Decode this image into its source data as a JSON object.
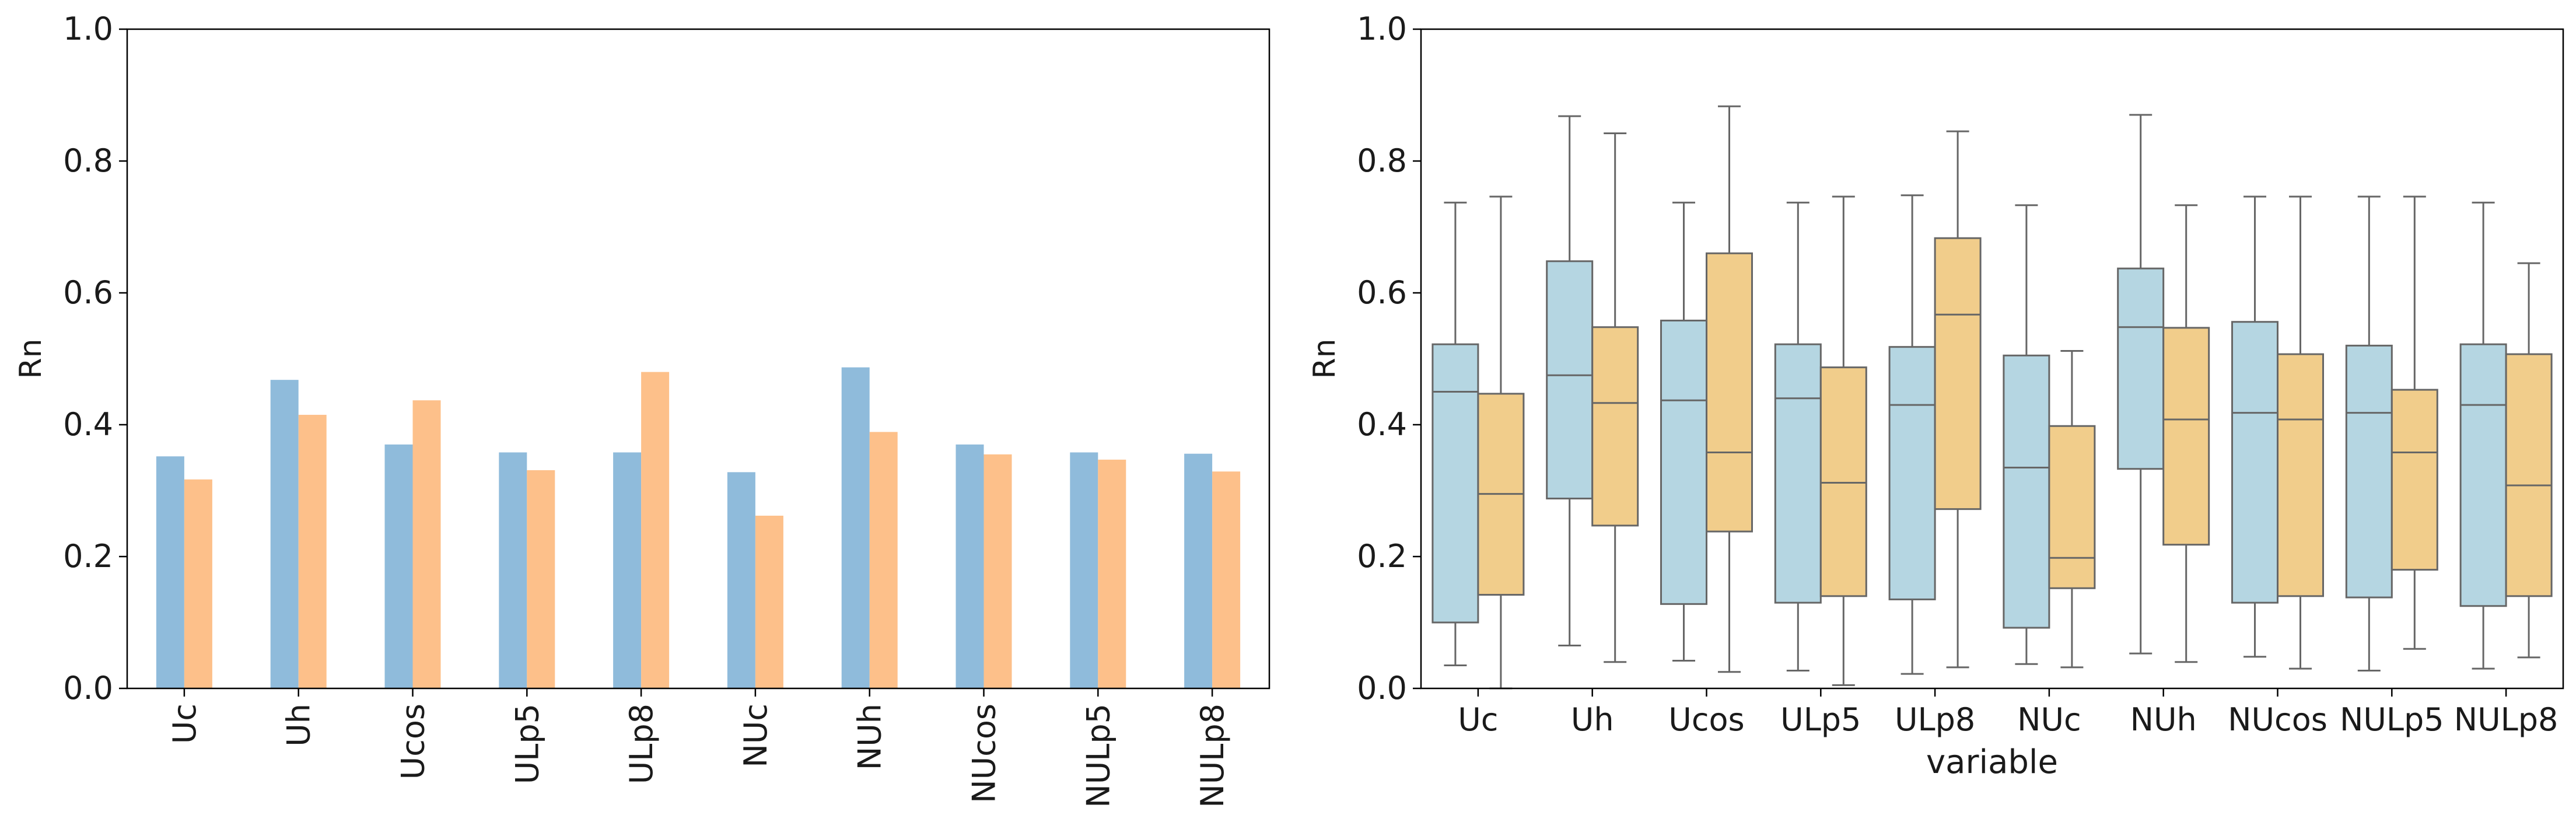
{
  "chart_data": [
    {
      "type": "bar",
      "categories": [
        "Uc",
        "Uh",
        "Ucos",
        "ULp5",
        "ULp8",
        "NUc",
        "NUh",
        "NUcos",
        "NULp5",
        "NULp8"
      ],
      "series": [
        {
          "color": "#8fbbdb",
          "values": [
            0.352,
            0.468,
            0.37,
            0.358,
            0.358,
            0.328,
            0.487,
            0.37,
            0.358,
            0.356
          ]
        },
        {
          "color": "#fdc08a",
          "values": [
            0.317,
            0.415,
            0.437,
            0.331,
            0.48,
            0.262,
            0.389,
            0.355,
            0.347,
            0.329
          ]
        }
      ],
      "ylabel": "Rn",
      "ylim": [
        0,
        1.0
      ],
      "yticks": [
        "0.0",
        "0.2",
        "0.4",
        "0.6",
        "0.8",
        "1.0"
      ],
      "xtick_rotation": "vertical",
      "grid": false,
      "legend": "none"
    },
    {
      "type": "box",
      "categories": [
        "Uc",
        "Uh",
        "Ucos",
        "ULp5",
        "ULp8",
        "NUc",
        "NUh",
        "NUcos",
        "NULp5",
        "NULp8"
      ],
      "series": [
        {
          "color": "#b5d6e2",
          "boxes": [
            {
              "whislo": 0.035,
              "q1": 0.1,
              "med": 0.45,
              "q3": 0.522,
              "whishi": 0.737
            },
            {
              "whislo": 0.065,
              "q1": 0.288,
              "med": 0.475,
              "q3": 0.648,
              "whishi": 0.868
            },
            {
              "whislo": 0.042,
              "q1": 0.128,
              "med": 0.437,
              "q3": 0.558,
              "whishi": 0.737
            },
            {
              "whislo": 0.027,
              "q1": 0.13,
              "med": 0.44,
              "q3": 0.522,
              "whishi": 0.737
            },
            {
              "whislo": 0.022,
              "q1": 0.135,
              "med": 0.43,
              "q3": 0.518,
              "whishi": 0.748
            },
            {
              "whislo": 0.037,
              "q1": 0.092,
              "med": 0.335,
              "q3": 0.505,
              "whishi": 0.733
            },
            {
              "whislo": 0.053,
              "q1": 0.333,
              "med": 0.548,
              "q3": 0.637,
              "whishi": 0.87
            },
            {
              "whislo": 0.048,
              "q1": 0.13,
              "med": 0.418,
              "q3": 0.556,
              "whishi": 0.746
            },
            {
              "whislo": 0.027,
              "q1": 0.138,
              "med": 0.418,
              "q3": 0.52,
              "whishi": 0.746
            },
            {
              "whislo": 0.03,
              "q1": 0.125,
              "med": 0.43,
              "q3": 0.522,
              "whishi": 0.737
            }
          ]
        },
        {
          "color": "#f1cd8b",
          "boxes": [
            {
              "whislo": 0.0,
              "q1": 0.142,
              "med": 0.295,
              "q3": 0.447,
              "whishi": 0.746
            },
            {
              "whislo": 0.04,
              "q1": 0.247,
              "med": 0.433,
              "q3": 0.548,
              "whishi": 0.842
            },
            {
              "whislo": 0.025,
              "q1": 0.238,
              "med": 0.358,
              "q3": 0.66,
              "whishi": 0.883
            },
            {
              "whislo": 0.005,
              "q1": 0.14,
              "med": 0.312,
              "q3": 0.487,
              "whishi": 0.746
            },
            {
              "whislo": 0.032,
              "q1": 0.272,
              "med": 0.567,
              "q3": 0.683,
              "whishi": 0.845
            },
            {
              "whislo": 0.032,
              "q1": 0.152,
              "med": 0.198,
              "q3": 0.398,
              "whishi": 0.512
            },
            {
              "whislo": 0.04,
              "q1": 0.218,
              "med": 0.408,
              "q3": 0.547,
              "whishi": 0.733
            },
            {
              "whislo": 0.03,
              "q1": 0.14,
              "med": 0.408,
              "q3": 0.507,
              "whishi": 0.746
            },
            {
              "whislo": 0.06,
              "q1": 0.18,
              "med": 0.358,
              "q3": 0.453,
              "whishi": 0.746
            },
            {
              "whislo": 0.047,
              "q1": 0.14,
              "med": 0.308,
              "q3": 0.507,
              "whishi": 0.645
            }
          ]
        }
      ],
      "xlabel": "variable",
      "ylabel": "Rn",
      "ylim": [
        0,
        1.0
      ],
      "yticks": [
        "0.0",
        "0.2",
        "0.4",
        "0.6",
        "0.8",
        "1.0"
      ],
      "grid": false,
      "legend": "none"
    }
  ]
}
